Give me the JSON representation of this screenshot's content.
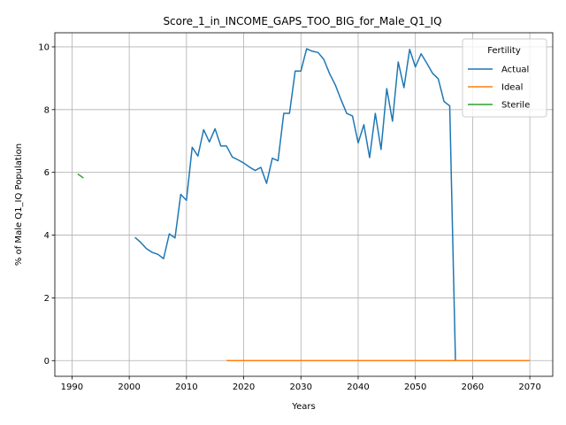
{
  "chart_data": {
    "type": "line",
    "title": "Score_1_in_INCOME_GAPS_TOO_BIG_for_Male_Q1_IQ",
    "xlabel": "Years",
    "ylabel": "% of Male Q1_IQ Population",
    "xlim": [
      1987,
      2074
    ],
    "ylim": [
      -0.5,
      10.45
    ],
    "xticks": [
      1990,
      2000,
      2010,
      2020,
      2030,
      2040,
      2050,
      2060,
      2070
    ],
    "yticks": [
      0,
      2,
      4,
      6,
      8,
      10
    ],
    "grid": true,
    "legend": {
      "title": "Fertility",
      "placement": "top-right"
    },
    "series": [
      {
        "name": "Actual",
        "color": "#1f77b4",
        "points": [
          [
            2001,
            3.93
          ],
          [
            2002,
            3.77
          ],
          [
            2003,
            3.57
          ],
          [
            2004,
            3.45
          ],
          [
            2005,
            3.39
          ],
          [
            2006,
            3.25
          ],
          [
            2007,
            4.04
          ],
          [
            2008,
            3.91
          ],
          [
            2009,
            5.3
          ],
          [
            2010,
            5.11
          ],
          [
            2011,
            6.8
          ],
          [
            2012,
            6.52
          ],
          [
            2013,
            7.36
          ],
          [
            2014,
            6.97
          ],
          [
            2015,
            7.39
          ],
          [
            2016,
            6.84
          ],
          [
            2017,
            6.84
          ],
          [
            2018,
            6.49
          ],
          [
            2019,
            6.4
          ],
          [
            2020,
            6.3
          ],
          [
            2021,
            6.17
          ],
          [
            2022,
            6.06
          ],
          [
            2023,
            6.16
          ],
          [
            2024,
            5.65
          ],
          [
            2025,
            6.45
          ],
          [
            2026,
            6.37
          ],
          [
            2027,
            7.88
          ],
          [
            2028,
            7.88
          ],
          [
            2029,
            9.23
          ],
          [
            2030,
            9.23
          ],
          [
            2031,
            9.94
          ],
          [
            2032,
            9.86
          ],
          [
            2033,
            9.82
          ],
          [
            2034,
            9.6
          ],
          [
            2035,
            9.15
          ],
          [
            2036,
            8.79
          ],
          [
            2037,
            8.32
          ],
          [
            2038,
            7.88
          ],
          [
            2039,
            7.8
          ],
          [
            2040,
            6.94
          ],
          [
            2041,
            7.52
          ],
          [
            2042,
            6.47
          ],
          [
            2043,
            7.88
          ],
          [
            2044,
            6.73
          ],
          [
            2045,
            8.67
          ],
          [
            2046,
            7.63
          ],
          [
            2047,
            9.52
          ],
          [
            2048,
            8.7
          ],
          [
            2049,
            9.92
          ],
          [
            2050,
            9.36
          ],
          [
            2051,
            9.78
          ],
          [
            2052,
            9.48
          ],
          [
            2053,
            9.16
          ],
          [
            2054,
            8.98
          ],
          [
            2055,
            8.26
          ],
          [
            2056,
            8.12
          ],
          [
            2057,
            0.0
          ]
        ]
      },
      {
        "name": "Ideal",
        "color": "#ff7f0e",
        "points": [
          [
            2017,
            0.0
          ],
          [
            2070,
            0.0
          ]
        ]
      },
      {
        "name": "Sterile",
        "color": "#2ca02c",
        "points": [
          [
            1991,
            5.95
          ],
          [
            1992,
            5.82
          ]
        ]
      }
    ]
  }
}
